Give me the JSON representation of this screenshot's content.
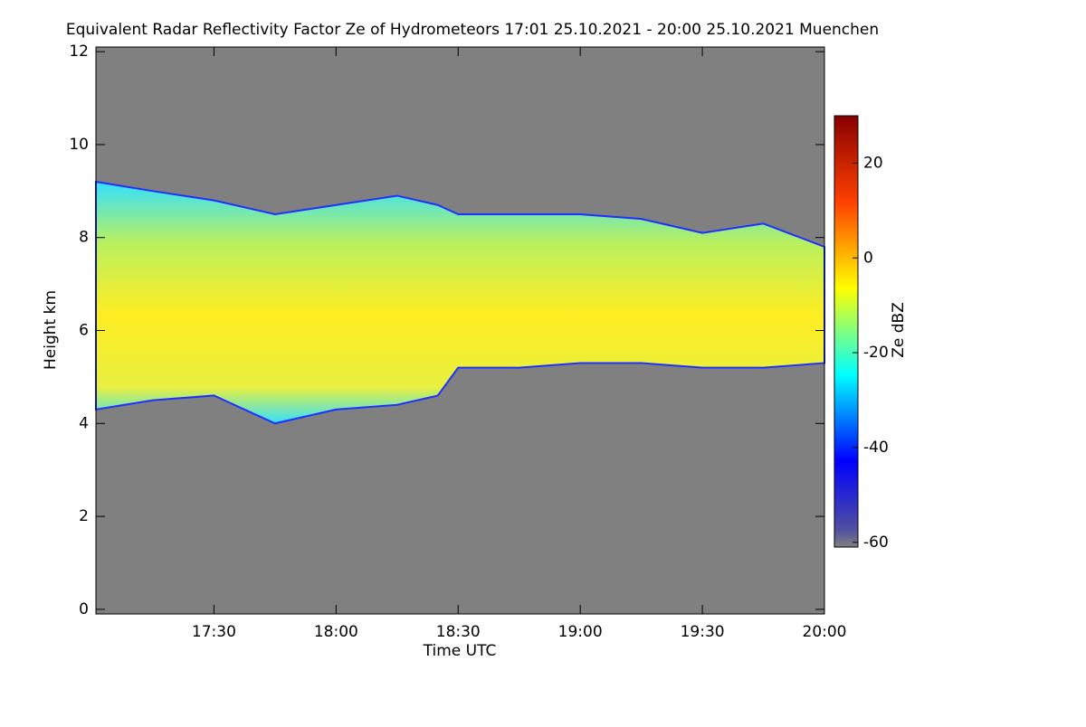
{
  "chart_data": {
    "type": "heatmap",
    "title": "Equivalent Radar Reflectivity Factor Ze of Hydrometeors   17:01 25.10.2021 - 20:00 25.10.2021 Muenchen",
    "xlabel": "Time UTC",
    "ylabel": "Height km",
    "zlabel": "Ze dBZ",
    "xlim": [
      "17:01",
      "20:00"
    ],
    "xticks": [
      "17:30",
      "18:00",
      "18:30",
      "19:00",
      "19:30",
      "20:00"
    ],
    "ylim": [
      -0.1,
      12.1
    ],
    "yticks": [
      0,
      2,
      4,
      6,
      8,
      10,
      12
    ],
    "zlim": [
      -61,
      30
    ],
    "zticks": [
      -60,
      -40,
      -20,
      0,
      20
    ],
    "background": "#808080",
    "x": [
      "17:01",
      "17:15",
      "17:30",
      "17:45",
      "18:00",
      "18:15",
      "18:25",
      "18:30",
      "18:45",
      "19:00",
      "19:15",
      "19:30",
      "19:45",
      "20:00"
    ],
    "top": [
      9.2,
      9.0,
      8.8,
      8.5,
      8.7,
      8.9,
      8.7,
      8.5,
      8.5,
      8.5,
      8.4,
      8.1,
      8.3,
      7.8
    ],
    "base": [
      4.3,
      4.5,
      4.6,
      4.0,
      4.3,
      4.4,
      4.6,
      5.2,
      5.2,
      5.3,
      5.3,
      5.2,
      5.2,
      5.3
    ]
  }
}
